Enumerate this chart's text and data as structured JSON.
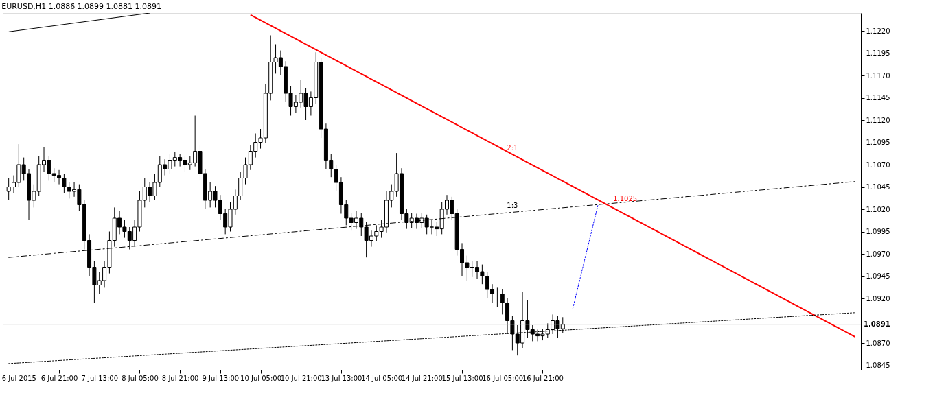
{
  "chart_data": {
    "type": "candlestick",
    "title": "EURUSD,H1  1.0886 1.0899 1.0881 1.0891",
    "categories": [
      null,
      null,
      "6 Jul 2015",
      null,
      null,
      null,
      null,
      null,
      null,
      null,
      "6 Jul 21:00",
      null,
      null,
      null,
      null,
      null,
      null,
      null,
      "7 Jul 13:00",
      null,
      null,
      null,
      null,
      null,
      null,
      null,
      "8 Jul 05:00",
      null,
      null,
      null,
      null,
      null,
      null,
      null,
      "8 Jul 21:00",
      null,
      null,
      null,
      null,
      null,
      null,
      null,
      "9 Jul 13:00",
      null,
      null,
      null,
      null,
      null,
      null,
      null,
      "10 Jul 05:00",
      null,
      null,
      null,
      null,
      null,
      null,
      null,
      "10 Jul 21:00",
      null,
      null,
      null,
      null,
      null,
      null,
      null,
      "13 Jul 13:00",
      null,
      null,
      null,
      null,
      null,
      null,
      null,
      "14 Jul 05:00",
      null,
      null,
      null,
      null,
      null,
      null,
      null,
      "14 Jul 21:00",
      null,
      null,
      null,
      null,
      null,
      null,
      null,
      "15 Jul 13:00",
      null,
      null,
      null,
      null,
      null,
      null,
      null,
      "16 Jul 05:00",
      null,
      null,
      null,
      null,
      null,
      null,
      null,
      "16 Jul 21:00",
      null,
      null,
      null,
      null,
      null,
      null,
      null,
      null,
      null,
      null,
      null,
      null,
      null,
      null,
      null,
      null,
      null,
      null,
      null,
      null,
      null,
      null,
      null,
      null,
      null,
      null,
      null,
      null,
      null,
      null,
      null,
      null,
      null,
      null,
      null,
      null,
      null,
      null,
      null,
      null,
      null,
      null,
      null,
      null,
      null,
      null,
      null,
      null,
      null,
      null,
      null,
      null,
      null,
      null,
      null,
      null,
      null,
      null,
      null,
      null,
      null,
      null
    ],
    "ohlc": [
      [
        1.104,
        1.1055,
        1.103,
        1.1045
      ],
      [
        1.1045,
        1.1058,
        1.1038,
        1.105
      ],
      [
        1.105,
        1.1093,
        1.1045,
        1.107
      ],
      [
        1.107,
        1.1078,
        1.1052,
        1.106
      ],
      [
        1.106,
        1.1065,
        1.1008,
        1.103
      ],
      [
        1.103,
        1.1048,
        1.1022,
        1.104
      ],
      [
        1.104,
        1.108,
        1.1035,
        1.107
      ],
      [
        1.107,
        1.109,
        1.1062,
        1.1075
      ],
      [
        1.1075,
        1.108,
        1.1052,
        1.106
      ],
      [
        1.106,
        1.1066,
        1.105,
        1.1058
      ],
      [
        1.1058,
        1.1064,
        1.1048,
        1.1055
      ],
      [
        1.1055,
        1.106,
        1.1038,
        1.1045
      ],
      [
        1.1045,
        1.105,
        1.1032,
        1.104
      ],
      [
        1.104,
        1.105,
        1.1034,
        1.1042
      ],
      [
        1.1042,
        1.1048,
        1.1018,
        1.1025
      ],
      [
        1.1025,
        1.103,
        1.0975,
        1.0985
      ],
      [
        1.0985,
        1.0992,
        1.0945,
        1.0955
      ],
      [
        1.0955,
        1.0962,
        1.0915,
        1.0935
      ],
      [
        1.0935,
        1.095,
        1.0925,
        1.094
      ],
      [
        1.094,
        1.0962,
        1.0932,
        1.0955
      ],
      [
        1.0955,
        1.0995,
        1.0948,
        1.0985
      ],
      [
        1.0985,
        1.1022,
        1.0978,
        1.101
      ],
      [
        1.101,
        1.1018,
        1.0992,
        1.1
      ],
      [
        1.1,
        1.1008,
        1.0988,
        1.0995
      ],
      [
        1.0995,
        1.1,
        1.0975,
        1.0985
      ],
      [
        1.0985,
        1.1008,
        1.0978,
        1.1
      ],
      [
        1.1,
        1.104,
        1.0995,
        1.103
      ],
      [
        1.103,
        1.1055,
        1.1022,
        1.1045
      ],
      [
        1.1045,
        1.105,
        1.1028,
        1.1035
      ],
      [
        1.1035,
        1.106,
        1.103,
        1.105
      ],
      [
        1.105,
        1.108,
        1.1045,
        1.107
      ],
      [
        1.107,
        1.1076,
        1.1058,
        1.1065
      ],
      [
        1.1065,
        1.1082,
        1.106,
        1.1075
      ],
      [
        1.1075,
        1.1084,
        1.1068,
        1.1078
      ],
      [
        1.1078,
        1.1082,
        1.1068,
        1.1075
      ],
      [
        1.1075,
        1.108,
        1.1062,
        1.107
      ],
      [
        1.107,
        1.108,
        1.1064,
        1.1072
      ],
      [
        1.1072,
        1.1125,
        1.1068,
        1.1085
      ],
      [
        1.1085,
        1.1092,
        1.1052,
        1.106
      ],
      [
        1.106,
        1.1065,
        1.102,
        1.103
      ],
      [
        1.103,
        1.105,
        1.1022,
        1.104
      ],
      [
        1.104,
        1.1046,
        1.1022,
        1.103
      ],
      [
        1.103,
        1.1036,
        1.1008,
        1.1015
      ],
      [
        1.1015,
        1.102,
        1.0992,
        1.1
      ],
      [
        1.1,
        1.1028,
        1.0995,
        1.102
      ],
      [
        1.102,
        1.1042,
        1.1014,
        1.1035
      ],
      [
        1.1035,
        1.1062,
        1.103,
        1.1055
      ],
      [
        1.1055,
        1.1078,
        1.1048,
        1.107
      ],
      [
        1.107,
        1.1092,
        1.1064,
        1.1085
      ],
      [
        1.1085,
        1.1105,
        1.1078,
        1.1095
      ],
      [
        1.1095,
        1.111,
        1.1088,
        1.11
      ],
      [
        1.11,
        1.116,
        1.1094,
        1.115
      ],
      [
        1.115,
        1.1215,
        1.1142,
        1.1185
      ],
      [
        1.1185,
        1.1205,
        1.1172,
        1.119
      ],
      [
        1.119,
        1.1198,
        1.117,
        1.118
      ],
      [
        1.118,
        1.1186,
        1.114,
        1.115
      ],
      [
        1.115,
        1.1158,
        1.1125,
        1.1135
      ],
      [
        1.1135,
        1.1148,
        1.1128,
        1.114
      ],
      [
        1.114,
        1.1165,
        1.1134,
        1.115
      ],
      [
        1.115,
        1.1156,
        1.112,
        1.1135
      ],
      [
        1.1135,
        1.1152,
        1.1125,
        1.1145
      ],
      [
        1.1145,
        1.1196,
        1.1138,
        1.1185
      ],
      [
        1.1185,
        1.119,
        1.11,
        1.111
      ],
      [
        1.111,
        1.1116,
        1.1065,
        1.1075
      ],
      [
        1.1075,
        1.1082,
        1.1056,
        1.1065
      ],
      [
        1.1065,
        1.107,
        1.104,
        1.105
      ],
      [
        1.105,
        1.1056,
        1.1015,
        1.1025
      ],
      [
        1.1025,
        1.103,
        1.1002,
        1.101
      ],
      [
        1.101,
        1.1016,
        1.0996,
        1.1005
      ],
      [
        1.1005,
        1.1018,
        1.0998,
        1.101
      ],
      [
        1.101,
        1.1016,
        1.099,
        1.1
      ],
      [
        1.1,
        1.1006,
        1.0966,
        1.0985
      ],
      [
        1.0985,
        1.0996,
        1.0978,
        1.099
      ],
      [
        1.099,
        1.1002,
        1.0984,
        1.0995
      ],
      [
        1.0995,
        1.1008,
        1.0988,
        1.1
      ],
      [
        1.1,
        1.104,
        1.0994,
        1.103
      ],
      [
        1.103,
        1.1048,
        1.1022,
        1.104
      ],
      [
        1.104,
        1.1083,
        1.1034,
        1.106
      ],
      [
        1.106,
        1.1066,
        1.1008,
        1.1015
      ],
      [
        1.1015,
        1.102,
        1.0998,
        1.1005
      ],
      [
        1.1005,
        1.1016,
        1.0999,
        1.101
      ],
      [
        1.101,
        1.1015,
        1.0998,
        1.1005
      ],
      [
        1.1005,
        1.1016,
        1.0999,
        1.101
      ],
      [
        1.101,
        1.1014,
        1.0992,
        1.1
      ],
      [
        1.1,
        1.1008,
        1.0992,
        1.1
      ],
      [
        1.1,
        1.1006,
        1.099,
        1.0998
      ],
      [
        1.0998,
        1.1028,
        1.0992,
        1.102
      ],
      [
        1.102,
        1.1036,
        1.1014,
        1.103
      ],
      [
        1.103,
        1.1034,
        1.1008,
        1.1015
      ],
      [
        1.1015,
        1.102,
        1.0968,
        1.0975
      ],
      [
        1.0975,
        1.0982,
        1.0945,
        1.096
      ],
      [
        1.096,
        1.0968,
        1.094,
        1.0955
      ],
      [
        1.0955,
        1.0962,
        1.0944,
        1.0955
      ],
      [
        1.0955,
        1.0962,
        1.0942,
        1.095
      ],
      [
        1.095,
        1.0958,
        1.0936,
        1.0945
      ],
      [
        1.0945,
        1.095,
        1.092,
        1.093
      ],
      [
        1.093,
        1.0936,
        1.0915,
        1.0925
      ],
      [
        1.0925,
        1.0932,
        1.091,
        1.0925
      ],
      [
        1.0925,
        1.093,
        1.0902,
        1.0915
      ],
      [
        1.0915,
        1.092,
        1.088,
        1.0895
      ],
      [
        1.0895,
        1.09,
        1.0862,
        1.088
      ],
      [
        1.088,
        1.089,
        1.0856,
        1.087
      ],
      [
        1.087,
        1.0927,
        1.0864,
        1.0895
      ],
      [
        1.0895,
        1.0918,
        1.0876,
        1.0885
      ],
      [
        1.0885,
        1.089,
        1.0872,
        1.088
      ],
      [
        1.088,
        1.0885,
        1.0872,
        1.0878
      ],
      [
        1.0878,
        1.0886,
        1.0873,
        1.088
      ],
      [
        1.088,
        1.0892,
        1.0876,
        1.0885
      ],
      [
        1.0885,
        1.0902,
        1.088,
        1.0895
      ],
      [
        1.0895,
        1.09,
        1.0876,
        1.0886
      ],
      [
        1.0886,
        1.0899,
        1.0881,
        1.0891
      ],
      null,
      null,
      null,
      null,
      null,
      null,
      null,
      null,
      null,
      null,
      null,
      null,
      null,
      null,
      null,
      null,
      null,
      null,
      null,
      null,
      null,
      null,
      null,
      null,
      null,
      null,
      null,
      null,
      null,
      null,
      null,
      null,
      null,
      null,
      null,
      null,
      null,
      null,
      null,
      null,
      null,
      null,
      null,
      null,
      null,
      null,
      null,
      null,
      null,
      null,
      null,
      null,
      null,
      null,
      null,
      null,
      null,
      null
    ],
    "series": [
      {
        "type": "line",
        "name": "2:1",
        "color": "#ff0000",
        "line_style": "solid",
        "values": [
          null,
          null,
          null,
          null,
          null,
          null,
          null,
          null,
          null,
          null,
          null,
          null,
          null,
          null,
          null,
          null,
          null,
          null,
          null,
          null,
          null,
          null,
          null,
          null,
          null,
          null,
          null,
          null,
          null,
          null,
          null,
          null,
          null,
          null,
          null,
          null,
          null,
          null,
          null,
          null,
          null,
          null,
          null,
          null,
          null,
          null,
          null,
          null,
          1.1238,
          null,
          null,
          null,
          null,
          null,
          null,
          null,
          null,
          null,
          null,
          null,
          null,
          null,
          null,
          null,
          null,
          null,
          null,
          null,
          null,
          null,
          null,
          null,
          null,
          null,
          null,
          null,
          null,
          null,
          null,
          null,
          null,
          null,
          null,
          null,
          null,
          null,
          null,
          null,
          null,
          null,
          null,
          null,
          null,
          null,
          null,
          null,
          null,
          null,
          null,
          null,
          null,
          null,
          null,
          null,
          null,
          null,
          null,
          null,
          null,
          null,
          null,
          null,
          null,
          null,
          null,
          null,
          null,
          null,
          null,
          null,
          null,
          null,
          null,
          null,
          null,
          null,
          null,
          null,
          null,
          null,
          null,
          null,
          null,
          null,
          null,
          null,
          null,
          null,
          null,
          null,
          null,
          null,
          null,
          null,
          null,
          null,
          null,
          null,
          null,
          null,
          null,
          null,
          null,
          null,
          null,
          null,
          null,
          null,
          null,
          null,
          null,
          null,
          null,
          null,
          null,
          null,
          null,
          null,
          1.0877
        ]
      },
      {
        "type": "line",
        "name": "1:3",
        "color": "#000000",
        "line_style": "dashed",
        "values": [
          1.0966,
          null,
          null,
          null,
          null,
          null,
          null,
          null,
          null,
          null,
          null,
          null,
          null,
          null,
          null,
          null,
          null,
          null,
          null,
          null,
          null,
          null,
          null,
          null,
          null,
          null,
          null,
          null,
          null,
          null,
          null,
          null,
          null,
          null,
          null,
          null,
          null,
          null,
          null,
          null,
          null,
          null,
          null,
          null,
          null,
          null,
          null,
          null,
          null,
          null,
          null,
          null,
          null,
          null,
          null,
          null,
          null,
          null,
          null,
          null,
          null,
          null,
          null,
          null,
          null,
          null,
          null,
          null,
          null,
          null,
          null,
          null,
          null,
          null,
          null,
          null,
          null,
          null,
          null,
          null,
          null,
          null,
          null,
          null,
          null,
          null,
          null,
          null,
          null,
          null,
          null,
          null,
          null,
          null,
          null,
          null,
          null,
          null,
          null,
          null,
          null,
          null,
          null,
          null,
          null,
          null,
          null,
          null,
          null,
          null,
          null,
          null,
          null,
          null,
          null,
          null,
          null,
          null,
          null,
          null,
          null,
          null,
          null,
          null,
          null,
          null,
          null,
          null,
          null,
          null,
          null,
          null,
          null,
          null,
          null,
          null,
          null,
          null,
          null,
          null,
          null,
          null,
          null,
          null,
          null,
          null,
          null,
          null,
          null,
          null,
          null,
          null,
          null,
          null,
          null,
          null,
          null,
          null,
          null,
          null,
          null,
          null,
          null,
          null,
          null,
          null,
          null,
          null,
          1.1051
        ]
      },
      {
        "type": "line",
        "color": "#000000",
        "line_style": "dotted",
        "values": [
          1.0847,
          null,
          null,
          null,
          null,
          null,
          null,
          null,
          null,
          null,
          null,
          null,
          null,
          null,
          null,
          null,
          null,
          null,
          null,
          null,
          null,
          null,
          null,
          null,
          null,
          null,
          null,
          null,
          null,
          null,
          null,
          null,
          null,
          null,
          null,
          null,
          null,
          null,
          null,
          null,
          null,
          null,
          null,
          null,
          null,
          null,
          null,
          null,
          null,
          null,
          null,
          null,
          null,
          null,
          null,
          null,
          null,
          null,
          null,
          null,
          null,
          null,
          null,
          null,
          null,
          null,
          null,
          null,
          null,
          null,
          null,
          null,
          null,
          null,
          null,
          null,
          null,
          null,
          null,
          null,
          null,
          null,
          null,
          null,
          null,
          null,
          null,
          null,
          null,
          null,
          null,
          null,
          null,
          null,
          null,
          null,
          null,
          null,
          null,
          null,
          null,
          null,
          null,
          null,
          null,
          null,
          null,
          null,
          null,
          null,
          null,
          null,
          null,
          null,
          null,
          null,
          null,
          null,
          null,
          null,
          null,
          null,
          null,
          null,
          null,
          null,
          null,
          null,
          null,
          null,
          null,
          null,
          null,
          null,
          null,
          null,
          null,
          null,
          null,
          null,
          null,
          null,
          null,
          null,
          null,
          null,
          null,
          null,
          null,
          null,
          null,
          null,
          null,
          null,
          null,
          null,
          null,
          null,
          null,
          null,
          null,
          null,
          null,
          null,
          null,
          null,
          null,
          null,
          1.0904
        ]
      },
      {
        "type": "line",
        "color": "#0000ff",
        "line_style": "dotted",
        "values": [
          null,
          null,
          null,
          null,
          null,
          null,
          null,
          null,
          null,
          null,
          null,
          null,
          null,
          null,
          null,
          null,
          null,
          null,
          null,
          null,
          null,
          null,
          null,
          null,
          null,
          null,
          null,
          null,
          null,
          null,
          null,
          null,
          null,
          null,
          null,
          null,
          null,
          null,
          null,
          null,
          null,
          null,
          null,
          null,
          null,
          null,
          null,
          null,
          null,
          null,
          null,
          null,
          null,
          null,
          null,
          null,
          null,
          null,
          null,
          null,
          null,
          null,
          null,
          null,
          null,
          null,
          null,
          null,
          null,
          null,
          null,
          null,
          null,
          null,
          null,
          null,
          null,
          null,
          null,
          null,
          null,
          null,
          null,
          null,
          null,
          null,
          null,
          null,
          null,
          null,
          null,
          null,
          null,
          null,
          null,
          null,
          null,
          null,
          null,
          null,
          null,
          null,
          null,
          null,
          null,
          null,
          null,
          null,
          null,
          null,
          null,
          null,
          1.0909,
          null,
          null,
          null,
          null,
          1.1025,
          null,
          null,
          null,
          null,
          null,
          null,
          null,
          null,
          null,
          null,
          null,
          null,
          null,
          null,
          null,
          null,
          null,
          null,
          null,
          null,
          null,
          null,
          null,
          null,
          null,
          null,
          null,
          null,
          null,
          null,
          null,
          null,
          null,
          null,
          null,
          null,
          null,
          null,
          null,
          null,
          null,
          null,
          null,
          null,
          null,
          null,
          null,
          null,
          null,
          null,
          null
        ]
      },
      {
        "type": "line",
        "color": "#000000",
        "line_style": "solid",
        "values": [
          1.1219,
          null,
          null,
          null,
          null,
          null,
          null,
          null,
          null,
          null,
          null,
          null,
          null,
          null,
          null,
          null,
          null,
          null,
          null,
          null,
          null,
          null,
          null,
          null,
          null,
          null,
          null,
          null,
          1.124,
          null,
          null,
          null,
          null,
          null,
          null,
          null,
          null,
          null,
          null,
          null,
          null,
          null,
          null,
          null,
          null,
          null,
          null,
          null,
          null,
          null,
          null,
          null,
          null,
          null,
          null,
          null,
          null,
          null,
          null,
          null,
          null,
          null,
          null,
          null,
          null,
          null,
          null,
          null,
          null,
          null,
          null,
          null,
          null,
          null,
          null,
          null,
          null,
          null,
          null,
          null,
          null,
          null,
          null,
          null,
          null,
          null,
          null,
          null,
          null,
          null,
          null,
          null,
          null,
          null,
          null,
          null,
          null,
          null,
          null,
          null,
          null,
          null,
          null,
          null,
          null,
          null,
          null,
          null,
          null,
          null,
          null,
          null,
          null,
          null,
          null,
          null,
          null,
          null,
          null,
          null,
          null,
          null,
          null,
          null,
          null,
          null,
          null,
          null,
          null,
          null,
          null,
          null,
          null,
          null,
          null,
          null,
          null,
          null,
          null,
          null,
          null,
          null,
          null,
          null,
          null,
          null,
          null,
          null,
          null,
          null,
          null,
          null,
          null,
          null,
          null,
          null,
          null,
          null,
          null,
          null,
          null,
          null,
          null,
          null,
          null,
          null,
          null,
          null,
          null
        ]
      }
    ],
    "ylim": [
      1.084,
      1.124
    ],
    "yticks": [
      1.0845,
      {
        "value": 1.087,
        "label": "1.0870"
      },
      {
        "value": 1.092,
        "label": "1.0920"
      },
      1.0945,
      {
        "value": 1.097,
        "label": "1.0970"
      },
      1.0995,
      {
        "value": 1.102,
        "label": "1.1020"
      },
      1.1045,
      {
        "value": 1.107,
        "label": "1.1070"
      },
      1.1095,
      {
        "value": 1.112,
        "label": "1.1120"
      },
      1.1145,
      {
        "value": 1.117,
        "label": "1.1170"
      },
      1.1195,
      {
        "value": 1.122,
        "label": "1.1220"
      }
    ],
    "ref_lines": [
      {
        "axis": "y",
        "value": 1.0891,
        "label": "1.0891",
        "color": "#c0c0c0"
      }
    ],
    "annotations": [
      {
        "text": "1.1025",
        "y": 1.1025
      }
    ]
  }
}
